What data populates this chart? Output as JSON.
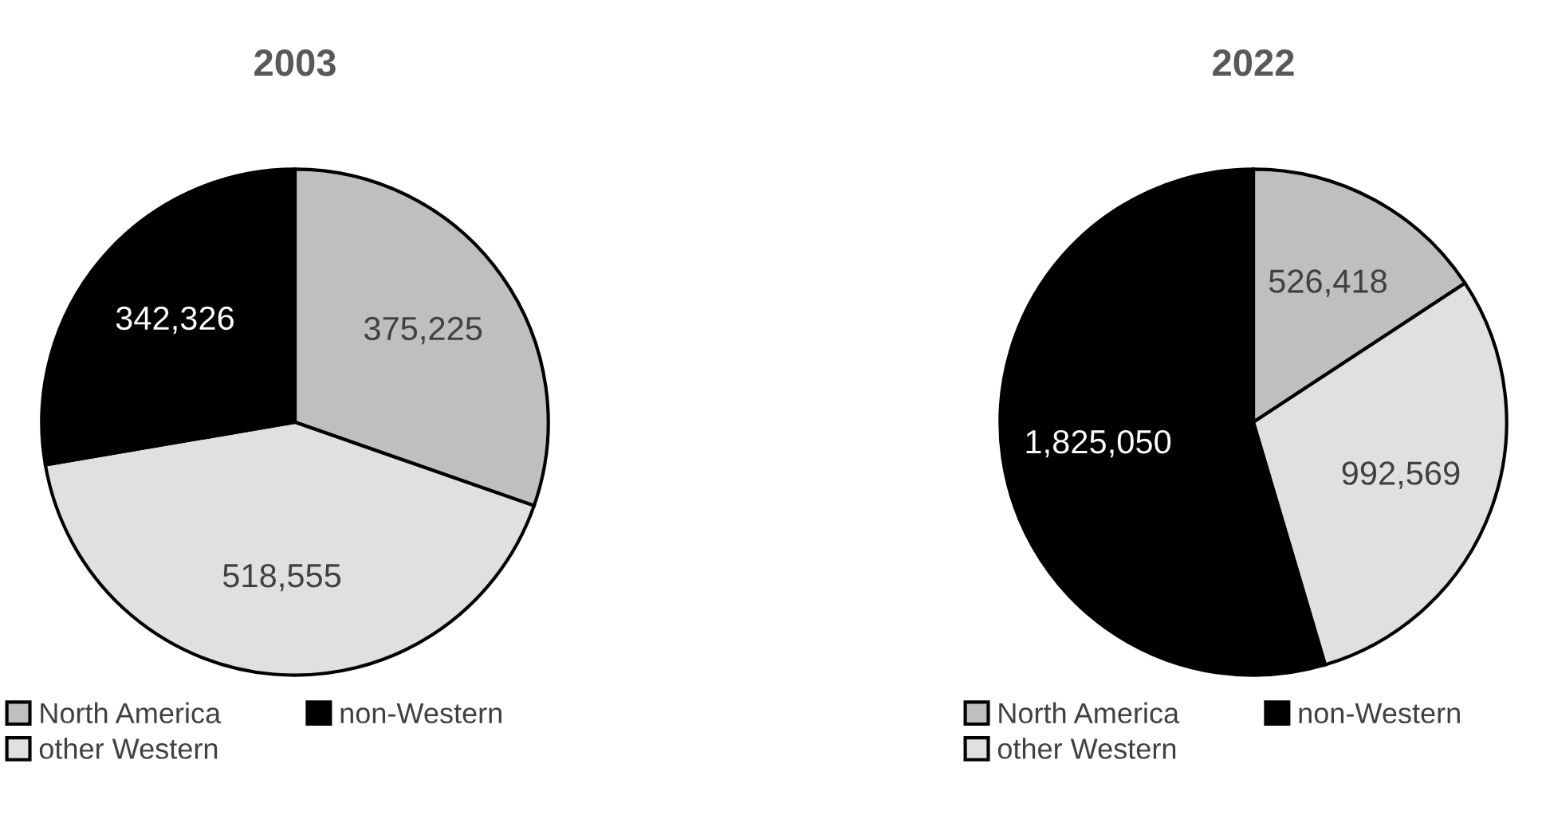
{
  "chart_data": [
    {
      "type": "pie",
      "title": "2003",
      "categories": [
        "North America",
        "other Western",
        "non-Western"
      ],
      "values": [
        375225,
        518555,
        342326
      ],
      "value_labels": [
        "375,225",
        "518,555",
        "342,326"
      ],
      "colors": [
        "#bfbfbf",
        "#e0e0e0",
        "#000000"
      ],
      "legend": "bottom"
    },
    {
      "type": "pie",
      "title": "2022",
      "categories": [
        "North America",
        "other Western",
        "non-Western"
      ],
      "values": [
        526418,
        992569,
        1825050
      ],
      "value_labels": [
        "526,418",
        "992,569",
        "1,825,050"
      ],
      "colors": [
        "#bfbfbf",
        "#e0e0e0",
        "#000000"
      ],
      "legend": "bottom"
    }
  ]
}
